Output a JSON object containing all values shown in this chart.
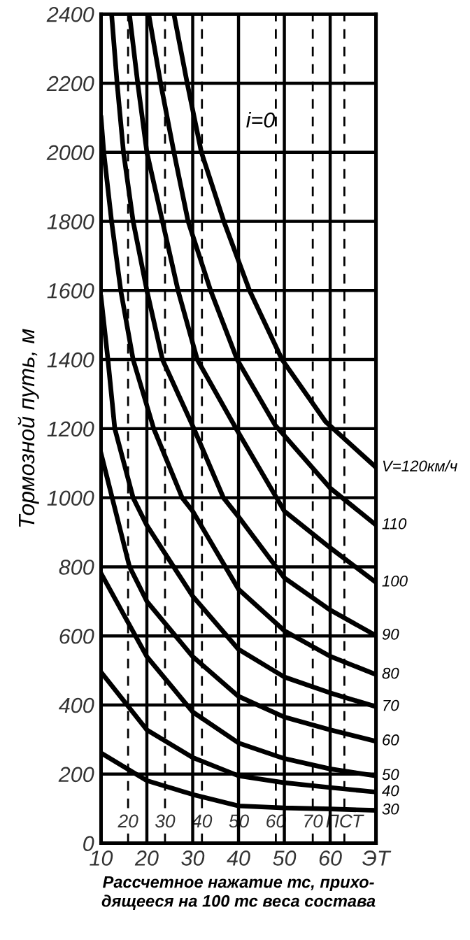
{
  "chart_data": {
    "type": "line",
    "xlabel": "Рассчетное нажатие тс, прихо-\nдящееся на 100 тс веса состава",
    "ylabel": "Тормозной путь, м",
    "xlim": [
      10,
      70
    ],
    "ylim": [
      0,
      2400
    ],
    "xticks": [
      10,
      20,
      30,
      40,
      50,
      60,
      {
        "value": 70,
        "label": "ЭТ"
      }
    ],
    "yticks": [
      0,
      200,
      400,
      600,
      800,
      1000,
      1200,
      1400,
      1600,
      1800,
      2000,
      2200,
      2400
    ],
    "grid": true,
    "legend": false,
    "marker": "none",
    "line_style": "solid",
    "annotations": [
      "i=0"
    ],
    "x2lim": [
      12.68,
      87.12
    ],
    "x2ticks": [
      20,
      30,
      40,
      50,
      60,
      70,
      {
        "value": 78.56,
        "label": "ПСТ"
      }
    ],
    "series": [
      {
        "name": "V=120км/ч",
        "color": "#000000",
        "x": [
          25.9,
          28.8,
          31.9,
          36.8,
          42.4,
          49.5,
          59,
          70
        ],
        "values": [
          2400,
          2200,
          2000,
          1800,
          1600,
          1400,
          1220,
          1088
        ]
      },
      {
        "name": "110",
        "color": "#000000",
        "x": [
          20.4,
          23,
          25.9,
          29,
          33.9,
          39.7,
          48,
          60,
          70
        ],
        "values": [
          2400,
          2200,
          2000,
          1800,
          1600,
          1400,
          1210,
          1028,
          921
        ]
      },
      {
        "name": "100",
        "color": "#000000",
        "x": [
          16.2,
          18,
          20,
          23.4,
          26.8,
          31,
          39.7,
          50,
          60,
          70
        ],
        "values": [
          2400,
          2200,
          2000,
          1800,
          1600,
          1400,
          1195,
          961,
          855,
          755
        ]
      },
      {
        "name": "90",
        "color": "#000000",
        "x": [
          12.3,
          13.5,
          14.9,
          17,
          20,
          23.4,
          30,
          36.7,
          40,
          50,
          60,
          70
        ],
        "values": [
          2400,
          2200,
          2000,
          1800,
          1600,
          1400,
          1208,
          1000,
          945,
          768,
          675,
          601
        ]
      },
      {
        "name": "80",
        "color": "#000000",
        "x": [
          10,
          10.6,
          12.3,
          14.3,
          17,
          21.5,
          27.7,
          30,
          40,
          50,
          60,
          70
        ],
        "values": [
          2100,
          2000,
          1800,
          1600,
          1400,
          1200,
          1000,
          961,
          735,
          615,
          541,
          488
        ]
      },
      {
        "name": "70",
        "color": "#000000",
        "x": [
          10,
          11.5,
          13,
          17,
          20,
          30,
          40,
          50,
          60,
          70
        ],
        "values": [
          1580,
          1400,
          1200,
          1000,
          920,
          715,
          561,
          481,
          435,
          395
        ]
      },
      {
        "name": "60",
        "color": "#000000",
        "x": [
          10,
          16.2,
          20,
          30,
          40,
          50,
          60,
          70
        ],
        "values": [
          1128,
          801,
          700,
          540,
          425,
          365,
          328,
          295
        ]
      },
      {
        "name": "50",
        "color": "#000000",
        "x": [
          10,
          20,
          30,
          40,
          50,
          60,
          70
        ],
        "values": [
          781,
          540,
          380,
          290,
          245,
          215,
          195
        ]
      },
      {
        "name": "40",
        "color": "#000000",
        "x": [
          10,
          20,
          30,
          40,
          50,
          60,
          70
        ],
        "values": [
          495,
          328,
          248,
          195,
          175,
          161,
          148
        ]
      },
      {
        "name": "30",
        "color": "#000000",
        "x": [
          10,
          20,
          30,
          40,
          50,
          60,
          70
        ],
        "values": [
          261,
          181,
          141,
          108,
          102,
          99,
          95
        ]
      }
    ]
  }
}
